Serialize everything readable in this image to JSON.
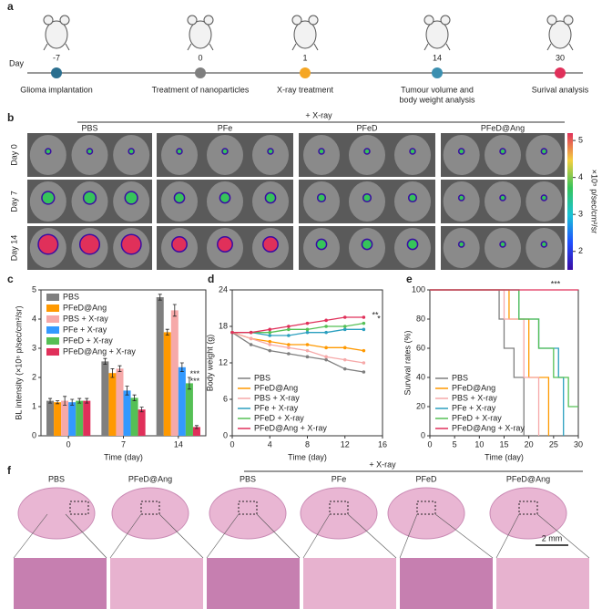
{
  "panel_labels": [
    "a",
    "b",
    "c",
    "d",
    "e",
    "f"
  ],
  "timeline": {
    "axis_label": "Day",
    "events": [
      {
        "day": "-7",
        "label": [
          "Glioma implantation"
        ],
        "color": "#2b6f8f"
      },
      {
        "day": "0",
        "label": [
          "Treatment of nanoparticles"
        ],
        "color": "#7f7f7f"
      },
      {
        "day": "1",
        "label": [
          "X-ray treatment"
        ],
        "color": "#f5a623"
      },
      {
        "day": "14",
        "label": [
          "Tumour volume and",
          "body weight analysis"
        ],
        "color": "#3b8fb0"
      },
      {
        "day": "30",
        "label": [
          "Surival analysis"
        ],
        "color": "#e0305a"
      }
    ]
  },
  "imaging": {
    "group_label": "+ X-ray",
    "columns": [
      "PBS",
      "PFe",
      "PFeD",
      "PFeD@Ang"
    ],
    "rows": [
      "Day 0",
      "Day 7",
      "Day 14"
    ],
    "colorbar": {
      "label": "×10⁵ p/sec/cm²/sr",
      "lim": [
        1.5,
        5.2
      ],
      "ticks": [
        2,
        3,
        4,
        5
      ]
    }
  },
  "chart_data": [
    {
      "type": "bar",
      "xlabel": "Time (day)",
      "ylabel": "BL intensity (×10⁶ p/sec/cm²/sr)",
      "categories": [
        "0",
        "7",
        "14"
      ],
      "ylim": [
        0,
        5
      ],
      "yticks": [
        0,
        1,
        2,
        3,
        4,
        5
      ],
      "legend": "upper left",
      "annotations": [
        "***",
        "***"
      ],
      "series": [
        {
          "name": "PBS",
          "color": "#7f7f7f",
          "values": [
            1.2,
            2.55,
            4.75
          ],
          "errors": [
            0.08,
            0.1,
            0.1
          ]
        },
        {
          "name": "PFeD@Ang",
          "color": "#ff9900",
          "values": [
            1.15,
            2.15,
            3.55
          ],
          "errors": [
            0.05,
            0.15,
            0.1
          ]
        },
        {
          "name": "PBS + X-ray",
          "color": "#f6a9a9",
          "values": [
            1.2,
            2.3,
            4.3
          ],
          "errors": [
            0.15,
            0.1,
            0.2
          ]
        },
        {
          "name": "PFe + X-ray",
          "color": "#3399ff",
          "values": [
            1.15,
            1.55,
            2.35
          ],
          "errors": [
            0.1,
            0.15,
            0.15
          ]
        },
        {
          "name": "PFeD + X-ray",
          "color": "#55c055",
          "values": [
            1.2,
            1.3,
            1.8
          ],
          "errors": [
            0.08,
            0.1,
            0.2
          ]
        },
        {
          "name": "PFeD@Ang + X-ray",
          "color": "#e0305a",
          "values": [
            1.2,
            0.9,
            0.3
          ],
          "errors": [
            0.08,
            0.08,
            0.05
          ]
        }
      ]
    },
    {
      "type": "line",
      "xlabel": "Time (day)",
      "ylabel": "Body weight (g)",
      "x": [
        0,
        2,
        4,
        6,
        8,
        10,
        12,
        14
      ],
      "xlim": [
        0,
        16
      ],
      "xticks": [
        0,
        4,
        8,
        12,
        16
      ],
      "ylim": [
        0,
        24
      ],
      "yticks": [
        0,
        6,
        12,
        18,
        24
      ],
      "legend": "lower left",
      "annotations": [
        "**",
        "*"
      ],
      "series": [
        {
          "name": "PBS",
          "color": "#7f7f7f",
          "values": [
            17,
            15,
            14,
            13.5,
            13,
            12.5,
            11,
            10.5
          ]
        },
        {
          "name": "PFeD@Ang",
          "color": "#ff9900",
          "values": [
            17,
            16,
            15.5,
            15,
            15,
            14.5,
            14.5,
            14
          ]
        },
        {
          "name": "PBS + X-ray",
          "color": "#f6a9a9",
          "values": [
            17,
            16,
            15,
            14.5,
            14,
            13,
            12.5,
            12
          ]
        },
        {
          "name": "PFe + X-ray",
          "color": "#2a9fbf",
          "values": [
            17,
            17,
            16.5,
            16.5,
            17,
            17,
            17.5,
            17.5
          ]
        },
        {
          "name": "PFeD + X-ray",
          "color": "#55c055",
          "values": [
            17,
            17,
            17,
            17.5,
            17.5,
            18,
            18,
            18.5
          ]
        },
        {
          "name": "PFeD@Ang + X-ray",
          "color": "#e0305a",
          "values": [
            17,
            17,
            17.5,
            18,
            18.5,
            19,
            19.5,
            19.5
          ]
        }
      ]
    },
    {
      "type": "line",
      "step": true,
      "xlabel": "Time (day)",
      "ylabel": "Survival rates (%)",
      "xlim": [
        0,
        30
      ],
      "xticks": [
        0,
        5,
        10,
        15,
        20,
        25,
        30
      ],
      "ylim": [
        0,
        100
      ],
      "yticks": [
        0,
        20,
        40,
        60,
        80,
        100
      ],
      "legend": "lower left",
      "annotations": [
        "***"
      ],
      "series": [
        {
          "name": "PBS",
          "color": "#7f7f7f",
          "x": [
            0,
            14,
            15,
            17,
            19
          ],
          "values": [
            100,
            80,
            60,
            40,
            0
          ]
        },
        {
          "name": "PFeD@Ang",
          "color": "#ff9900",
          "x": [
            0,
            16,
            20,
            24
          ],
          "values": [
            100,
            80,
            40,
            0
          ]
        },
        {
          "name": "PBS + X-ray",
          "color": "#f6a9a9",
          "x": [
            0,
            15,
            19,
            22
          ],
          "values": [
            100,
            80,
            40,
            0
          ]
        },
        {
          "name": "PFe + X-ray",
          "color": "#2a9fbf",
          "x": [
            0,
            18,
            22,
            26,
            27
          ],
          "values": [
            100,
            80,
            60,
            40,
            0
          ]
        },
        {
          "name": "PFeD + X-ray",
          "color": "#55c055",
          "x": [
            0,
            18,
            22,
            25,
            28,
            30
          ],
          "values": [
            100,
            80,
            60,
            40,
            20,
            20
          ]
        },
        {
          "name": "PFeD@Ang + X-ray",
          "color": "#e0305a",
          "x": [
            0,
            30
          ],
          "values": [
            100,
            100
          ]
        }
      ]
    }
  ],
  "histology": {
    "group_label": "+ X-ray",
    "columns": [
      "PBS",
      "PFeD@Ang",
      "PBS",
      "PFe",
      "PFeD",
      "PFeD@Ang"
    ],
    "scale_bar": "2 mm"
  }
}
